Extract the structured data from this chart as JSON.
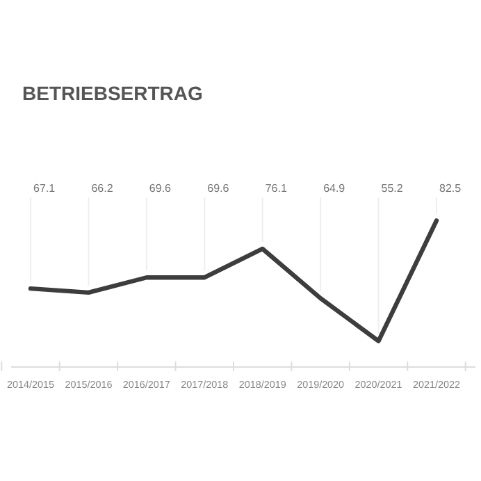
{
  "chart_data": {
    "type": "line",
    "title": "BETRIEBSERTRAG",
    "categories": [
      "2014/2015",
      "2015/2016",
      "2016/2017",
      "2017/2018",
      "2018/2019",
      "2019/2020",
      "2020/2021",
      "2021/2022"
    ],
    "series": [
      {
        "color": "#3d3d3d",
        "values": [
          67.1,
          66.2,
          69.6,
          69.6,
          76.1,
          64.9,
          55.2,
          82.5
        ]
      }
    ],
    "data_labels": true,
    "grid": "x",
    "marker": "none",
    "line_style": "solid"
  }
}
